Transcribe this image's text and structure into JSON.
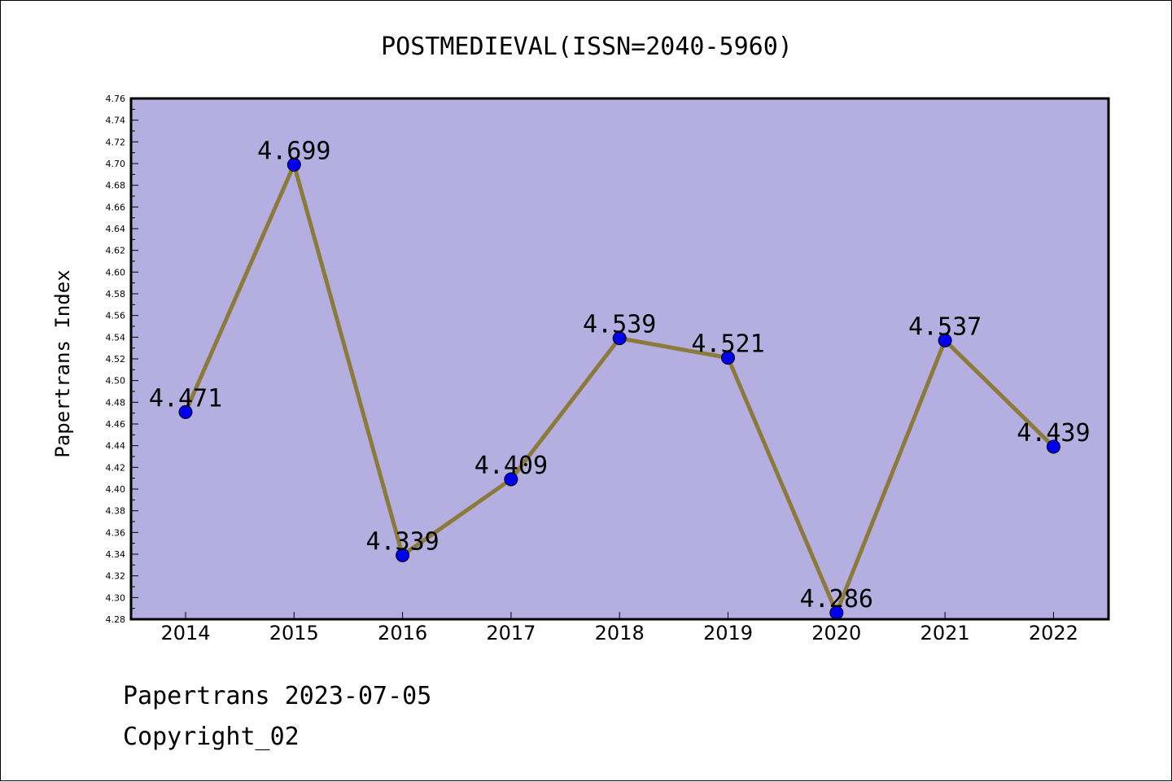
{
  "chart_data": {
    "type": "line",
    "title": "POSTMEDIEVAL(ISSN=2040-5960)",
    "ylabel": "Papertrans Index",
    "xlabel": "",
    "categories": [
      "2014",
      "2015",
      "2016",
      "2017",
      "2018",
      "2019",
      "2020",
      "2021",
      "2022"
    ],
    "series": [
      {
        "values": [
          4.471,
          4.699,
          4.339,
          4.409,
          4.539,
          4.521,
          4.286,
          4.537,
          4.439
        ],
        "labels": [
          "4.471",
          "4.699",
          "4.339",
          "4.409",
          "4.539",
          "4.521",
          "4.286",
          "4.537",
          "4.439"
        ]
      }
    ],
    "ylim": [
      4.28,
      4.76
    ],
    "ytick_step": 0.02,
    "ytick_decimals": 2,
    "grid": false,
    "colors": {
      "plot_background": "#b4aee1",
      "line": "#8b7a3a",
      "marker": "#0000ee"
    }
  },
  "footer": {
    "line1": "Papertrans 2023-07-05",
    "line2": "Copyright_02"
  }
}
